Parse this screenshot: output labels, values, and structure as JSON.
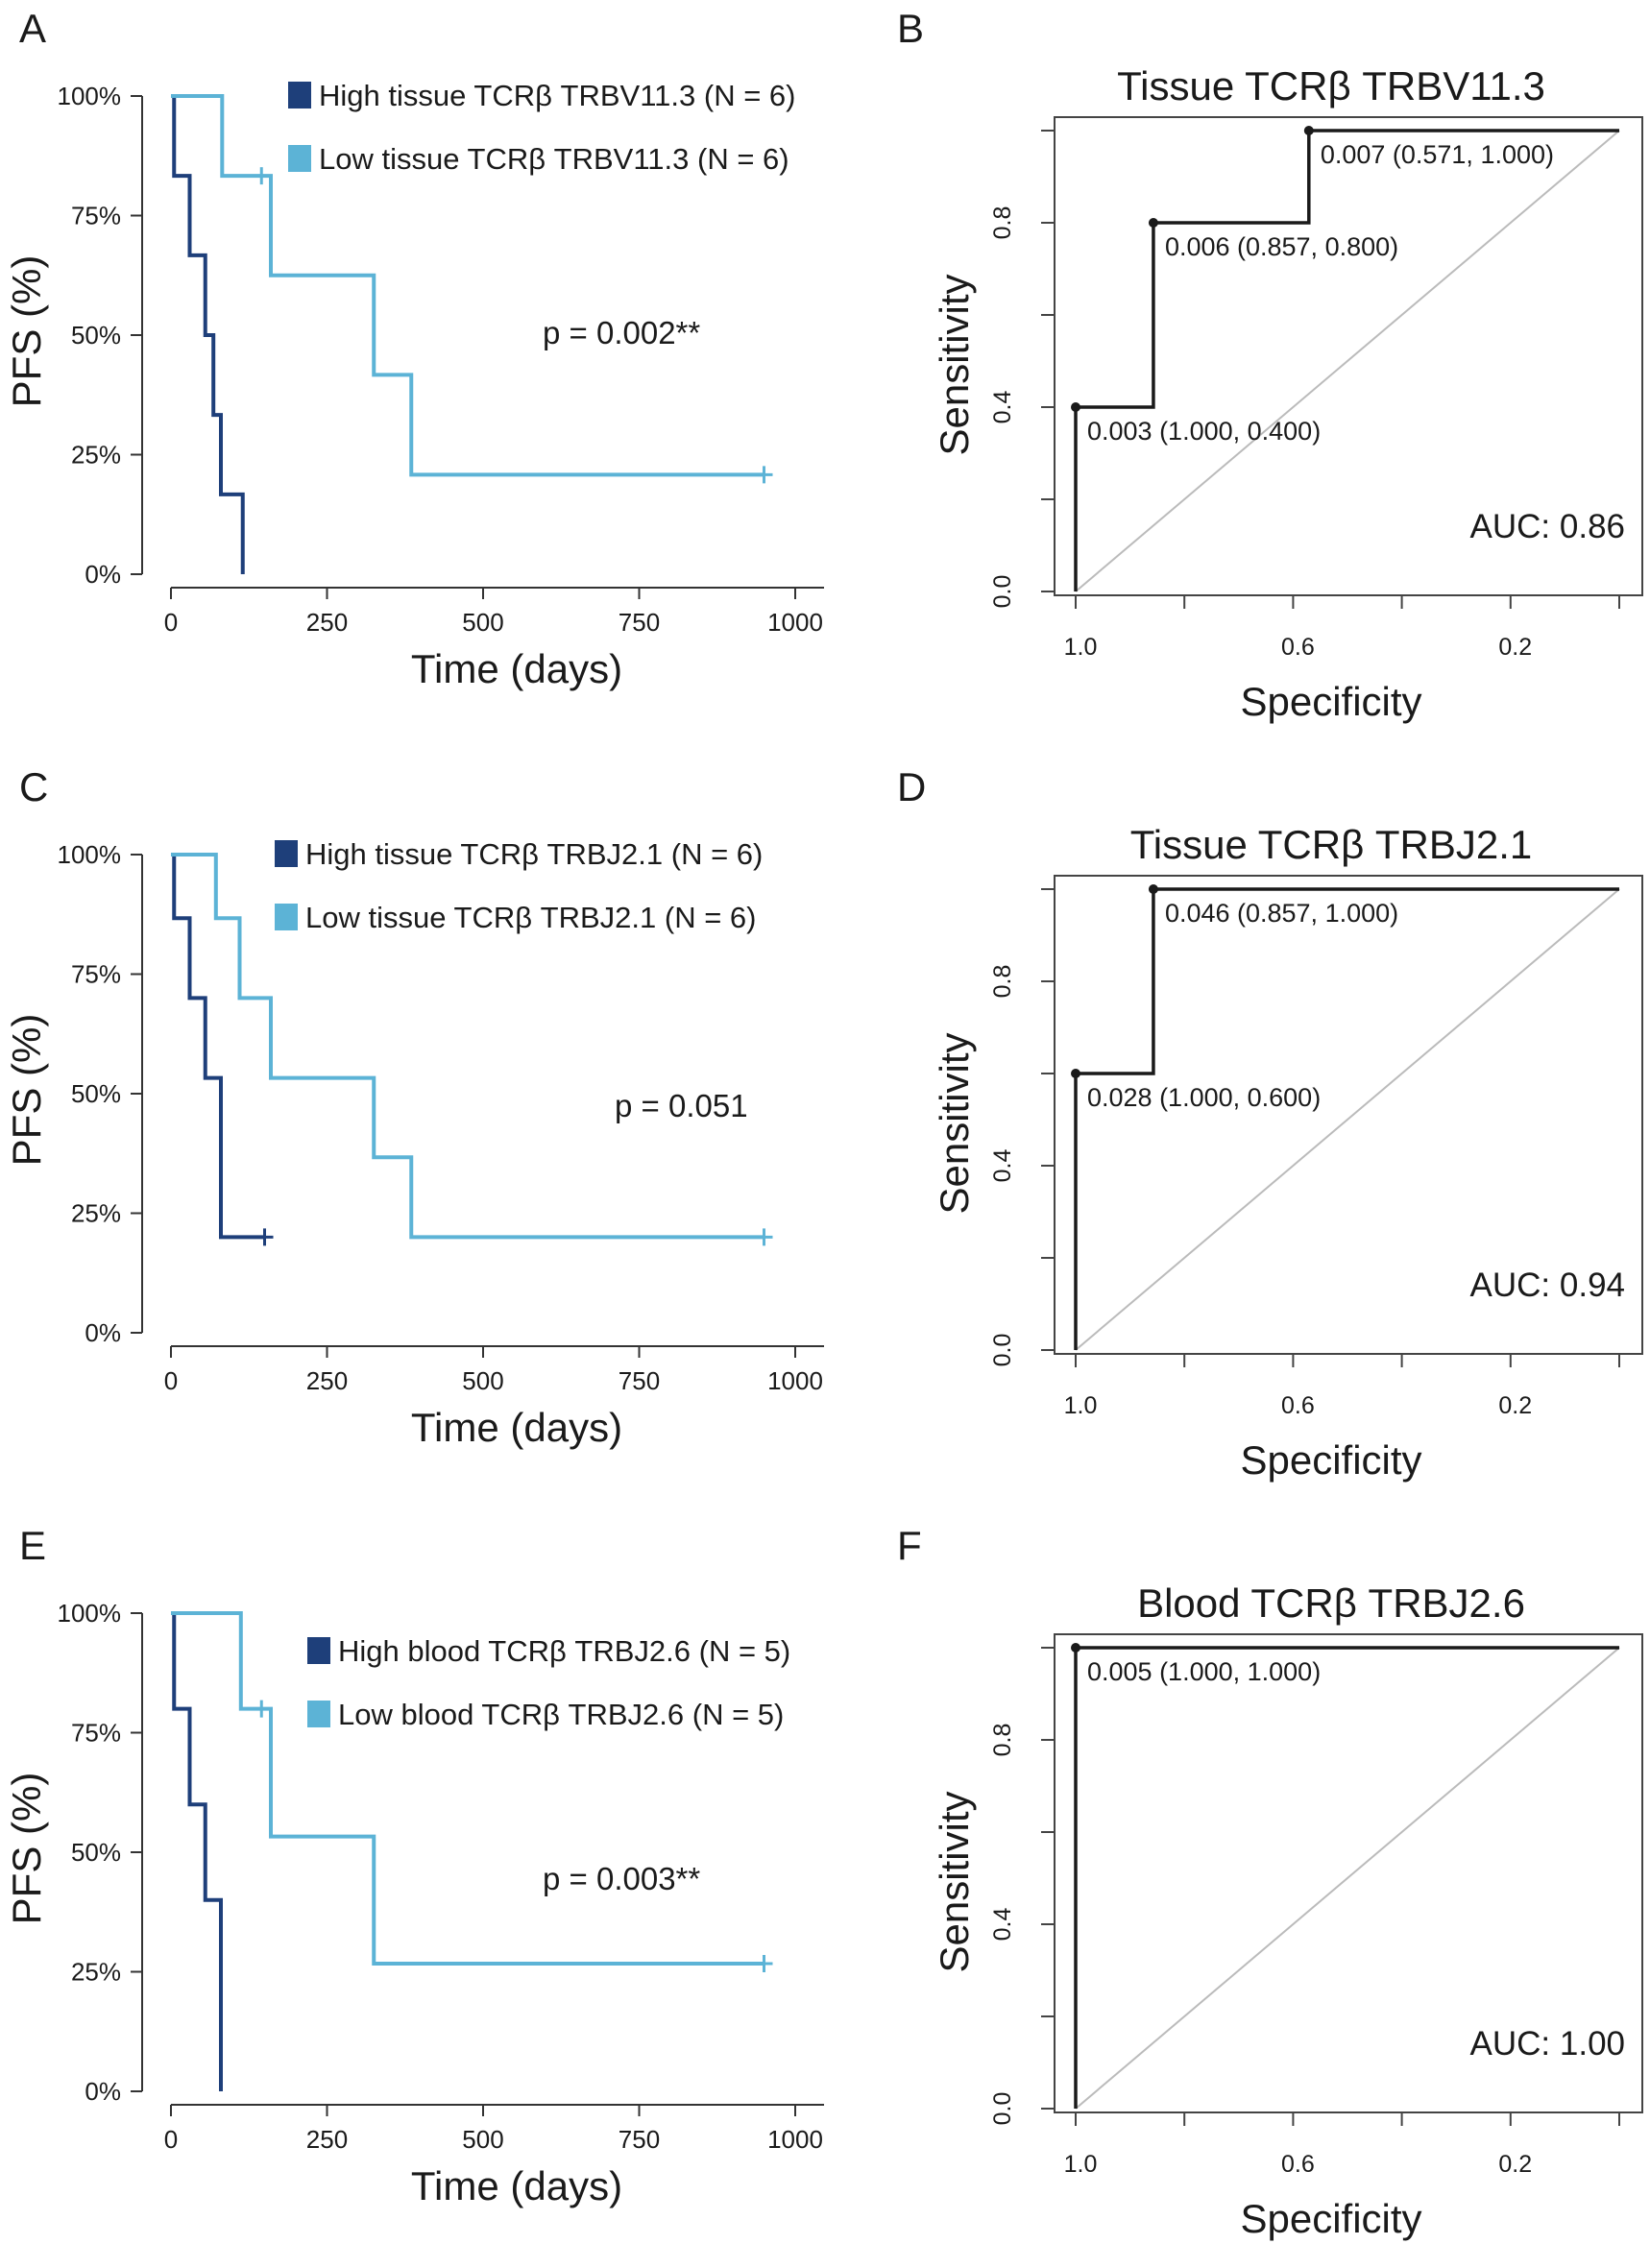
{
  "chart_data": [
    {
      "panel": "A",
      "type": "line",
      "subtype": "kaplan-meier",
      "xlabel": "Time (days)",
      "ylabel": "PFS (%)",
      "xticks": [
        "0",
        "250",
        "500",
        "750",
        "1000"
      ],
      "yticks": [
        "0%",
        "25%",
        "50%",
        "75%",
        "100%"
      ],
      "xlim": [
        0,
        1000
      ],
      "ylim": [
        0,
        100
      ],
      "annotation": "p = 0.002**",
      "series": [
        {
          "name": "High tissue TCRβ TRBV11.3 (N = 6)",
          "color": "#1e3f7a",
          "steps": [
            [
              0,
              100
            ],
            [
              5,
              83.3
            ],
            [
              30,
              66.7
            ],
            [
              55,
              50
            ],
            [
              68,
              33.3
            ],
            [
              80,
              16.7
            ],
            [
              115,
              0
            ]
          ],
          "end": 115,
          "censored": []
        },
        {
          "name": "Low tissue TCRβ TRBV11.3 (N = 6)",
          "color": "#5cb3d6",
          "steps": [
            [
              0,
              100
            ],
            [
              82,
              83.3
            ],
            [
              160,
              62.5
            ],
            [
              325,
              41.7
            ],
            [
              385,
              20.8
            ]
          ],
          "end": 950,
          "censored": [
            [
              145,
              83.3
            ],
            [
              950,
              20.8
            ]
          ]
        }
      ]
    },
    {
      "panel": "B",
      "type": "line",
      "subtype": "roc",
      "title": "Tissue TCRβ TRBV11.3",
      "xlabel": "Specificity",
      "ylabel": "Sensitivity",
      "xticks": [
        "1.0",
        "0.6",
        "0.2"
      ],
      "yticks": [
        "0.0",
        "0.4",
        "0.8"
      ],
      "xlim": [
        1.0,
        0.0
      ],
      "ylim": [
        0.0,
        1.0
      ],
      "auc": "AUC: 0.86",
      "curve": [
        [
          1.0,
          0.0
        ],
        [
          1.0,
          0.4
        ],
        [
          0.857,
          0.4
        ],
        [
          0.857,
          0.8
        ],
        [
          0.571,
          0.8
        ],
        [
          0.571,
          1.0
        ],
        [
          0.0,
          1.0
        ]
      ],
      "points": [
        {
          "spec": 1.0,
          "sens": 0.4,
          "label": "0.003 (1.000, 0.400)"
        },
        {
          "spec": 0.857,
          "sens": 0.8,
          "label": "0.006 (0.857, 0.800)"
        },
        {
          "spec": 0.571,
          "sens": 1.0,
          "label": "0.007 (0.571, 1.000)"
        }
      ]
    },
    {
      "panel": "C",
      "type": "line",
      "subtype": "kaplan-meier",
      "xlabel": "Time (days)",
      "ylabel": "PFS (%)",
      "xticks": [
        "0",
        "250",
        "500",
        "750",
        "1000"
      ],
      "yticks": [
        "0%",
        "25%",
        "50%",
        "75%",
        "100%"
      ],
      "xlim": [
        0,
        1000
      ],
      "ylim": [
        0,
        100
      ],
      "annotation": "p = 0.051",
      "series": [
        {
          "name": "High tissue TCRβ TRBJ2.1 (N = 6)",
          "color": "#1e3f7a",
          "steps": [
            [
              0,
              100
            ],
            [
              5,
              86.7
            ],
            [
              30,
              70
            ],
            [
              55,
              53.3
            ],
            [
              80,
              20
            ]
          ],
          "end": 150,
          "censored": [
            [
              150,
              20
            ]
          ]
        },
        {
          "name": "Low tissue TCRβ TRBJ2.1 (N = 6)",
          "color": "#5cb3d6",
          "steps": [
            [
              0,
              100
            ],
            [
              72,
              86.7
            ],
            [
              110,
              70
            ],
            [
              160,
              53.3
            ],
            [
              325,
              36.7
            ],
            [
              385,
              20
            ]
          ],
          "end": 950,
          "censored": [
            [
              950,
              20
            ]
          ]
        }
      ]
    },
    {
      "panel": "D",
      "type": "line",
      "subtype": "roc",
      "title": "Tissue TCRβ TRBJ2.1",
      "xlabel": "Specificity",
      "ylabel": "Sensitivity",
      "xticks": [
        "1.0",
        "0.6",
        "0.2"
      ],
      "yticks": [
        "0.0",
        "0.4",
        "0.8"
      ],
      "xlim": [
        1.0,
        0.0
      ],
      "ylim": [
        0.0,
        1.0
      ],
      "auc": "AUC: 0.94",
      "curve": [
        [
          1.0,
          0.0
        ],
        [
          1.0,
          0.6
        ],
        [
          0.857,
          0.6
        ],
        [
          0.857,
          1.0
        ],
        [
          0.0,
          1.0
        ]
      ],
      "points": [
        {
          "spec": 1.0,
          "sens": 0.6,
          "label": "0.028 (1.000, 0.600)"
        },
        {
          "spec": 0.857,
          "sens": 1.0,
          "label": "0.046 (0.857, 1.000)"
        }
      ]
    },
    {
      "panel": "E",
      "type": "line",
      "subtype": "kaplan-meier",
      "xlabel": "Time (days)",
      "ylabel": "PFS (%)",
      "xticks": [
        "0",
        "250",
        "500",
        "750",
        "1000"
      ],
      "yticks": [
        "0%",
        "25%",
        "50%",
        "75%",
        "100%"
      ],
      "xlim": [
        0,
        1000
      ],
      "ylim": [
        0,
        100
      ],
      "annotation": "p = 0.003**",
      "series": [
        {
          "name": "High blood TCRβ TRBJ2.6 (N = 5)",
          "color": "#1e3f7a",
          "steps": [
            [
              0,
              100
            ],
            [
              5,
              80
            ],
            [
              30,
              60
            ],
            [
              55,
              40
            ],
            [
              80,
              0
            ]
          ],
          "end": 80,
          "censored": []
        },
        {
          "name": "Low blood TCRβ TRBJ2.6 (N = 5)",
          "color": "#5cb3d6",
          "steps": [
            [
              0,
              100
            ],
            [
              112,
              80
            ],
            [
              160,
              53.3
            ],
            [
              325,
              26.7
            ]
          ],
          "end": 950,
          "censored": [
            [
              145,
              80
            ],
            [
              950,
              26.7
            ]
          ]
        }
      ]
    },
    {
      "panel": "F",
      "type": "line",
      "subtype": "roc",
      "title": "Blood TCRβ TRBJ2.6",
      "xlabel": "Specificity",
      "ylabel": "Sensitivity",
      "xticks": [
        "1.0",
        "0.6",
        "0.2"
      ],
      "yticks": [
        "0.0",
        "0.4",
        "0.8"
      ],
      "xlim": [
        1.0,
        0.0
      ],
      "ylim": [
        0.0,
        1.0
      ],
      "auc": "AUC: 1.00",
      "curve": [
        [
          1.0,
          0.0
        ],
        [
          1.0,
          1.0
        ],
        [
          0.0,
          1.0
        ]
      ],
      "points": [
        {
          "spec": 1.0,
          "sens": 1.0,
          "label": "0.005 (1.000, 1.000)"
        }
      ]
    }
  ]
}
